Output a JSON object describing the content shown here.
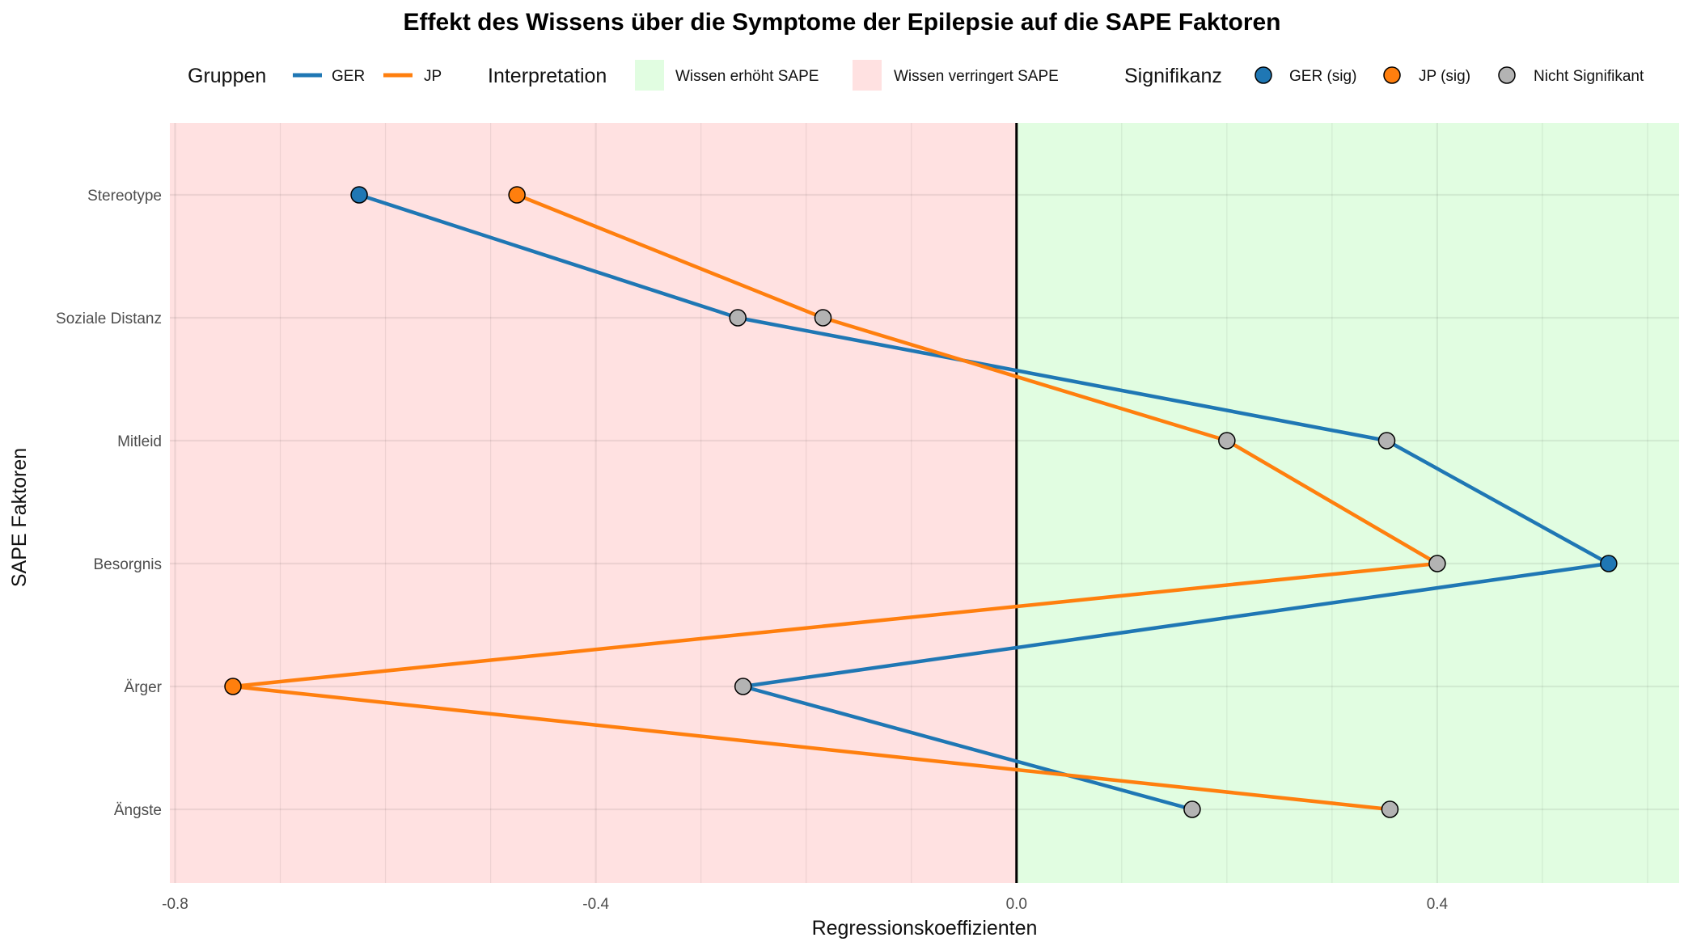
{
  "chart_data": {
    "type": "line",
    "title": "Effekt des Wissens über die Symptome der Epilepsie auf die SAPE Faktoren",
    "xlabel": "Regressionskoeffizienten",
    "ylabel": "SAPE Faktoren",
    "xlim": [
      -0.805,
      0.63
    ],
    "x_ticks": [
      {
        "value": -0.8,
        "label": "-0.8"
      },
      {
        "value": -0.4,
        "label": "-0.4"
      },
      {
        "value": 0.0,
        "label": "0.0"
      },
      {
        "value": 0.4,
        "label": "0.4"
      }
    ],
    "categories": [
      "Stereotype",
      "Soziale Distanz",
      "Mitleid",
      "Besorgnis",
      "Ärger",
      "Ängste"
    ],
    "series": [
      {
        "name": "GER",
        "color": "#1f77b4",
        "values": [
          -0.625,
          -0.265,
          0.352,
          0.563,
          -0.26,
          0.167
        ],
        "significant": [
          true,
          false,
          false,
          true,
          false,
          false
        ]
      },
      {
        "name": "JP",
        "color": "#ff7f0e",
        "values": [
          -0.475,
          -0.184,
          0.2,
          0.4,
          -0.745,
          0.355
        ],
        "significant": [
          true,
          false,
          false,
          false,
          true,
          false
        ]
      }
    ],
    "regions": [
      {
        "label": "Wissen erhöht SAPE",
        "color": "#e1fde1",
        "from": 0.0,
        "to": 0.63
      },
      {
        "label": "Wissen verringert SAPE",
        "color": "#ffe1e1",
        "from": -0.805,
        "to": 0.0
      }
    ],
    "nonsig_color": "#b3b3b3",
    "grid": true,
    "legend_position": "top"
  },
  "legend": {
    "groups_title": "Gruppen",
    "groups": [
      {
        "label": "GER",
        "color": "#1f77b4"
      },
      {
        "label": "JP",
        "color": "#ff7f0e"
      }
    ],
    "interpretation_title": "Interpretation",
    "interpretation": [
      {
        "label": "Wissen erhöht SAPE",
        "color": "#e1fde1"
      },
      {
        "label": "Wissen verringert SAPE",
        "color": "#ffe1e1"
      }
    ],
    "significance_title": "Signifikanz",
    "significance": [
      {
        "label": "GER (sig)",
        "color": "#1f77b4"
      },
      {
        "label": "JP (sig)",
        "color": "#ff7f0e"
      },
      {
        "label": "Nicht Signifikant",
        "color": "#b3b3b3"
      }
    ]
  }
}
